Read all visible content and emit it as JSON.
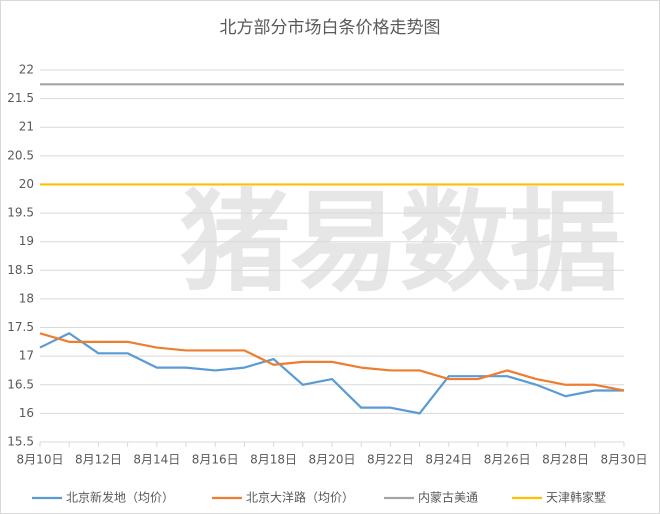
{
  "chart_data": {
    "type": "line",
    "title": "北方部分市场白条价格走势图",
    "watermark": "猪易数据",
    "categories": [
      "8月10日",
      null,
      "8月12日",
      null,
      "8月14日",
      null,
      "8月16日",
      null,
      "8月18日",
      null,
      "8月20日",
      null,
      "8月22日",
      null,
      "8月24日",
      null,
      "8月26日",
      null,
      "8月28日",
      null,
      "8月30日"
    ],
    "series": [
      {
        "name": "北京新发地（均价）",
        "color": "#5b9bd5",
        "values": [
          17.15,
          17.4,
          17.05,
          17.05,
          16.8,
          16.8,
          16.75,
          16.8,
          16.95,
          16.5,
          16.6,
          16.1,
          16.1,
          16.0,
          16.65,
          16.65,
          16.65,
          16.5,
          16.3,
          16.4,
          16.4
        ]
      },
      {
        "name": "北京大洋路（均价）",
        "color": "#ed7d31",
        "values": [
          17.4,
          17.25,
          17.25,
          17.25,
          17.15,
          17.1,
          17.1,
          17.1,
          16.85,
          16.9,
          16.9,
          16.8,
          16.75,
          16.75,
          16.6,
          16.6,
          16.75,
          16.6,
          16.5,
          16.5,
          16.4
        ]
      },
      {
        "name": "内蒙古美通",
        "color": "#a5a5a5",
        "values": [
          21.75,
          21.75,
          21.75,
          21.75,
          21.75,
          21.75,
          21.75,
          21.75,
          21.75,
          21.75,
          21.75,
          21.75,
          21.75,
          21.75,
          21.75,
          21.75,
          21.75,
          21.75,
          21.75,
          21.75,
          21.75
        ]
      },
      {
        "name": "天津韩家墅",
        "color": "#ffc000",
        "values": [
          20,
          20,
          20,
          20,
          20,
          20,
          20,
          20,
          20,
          20,
          20,
          20,
          20,
          20,
          20,
          20,
          20,
          20,
          20,
          20,
          20
        ]
      }
    ],
    "ylim": [
      15.5,
      22
    ],
    "yticks": [
      15.5,
      16,
      16.5,
      17,
      17.5,
      18,
      18.5,
      19,
      19.5,
      20,
      20.5,
      21,
      21.5,
      22
    ],
    "grid": true
  }
}
